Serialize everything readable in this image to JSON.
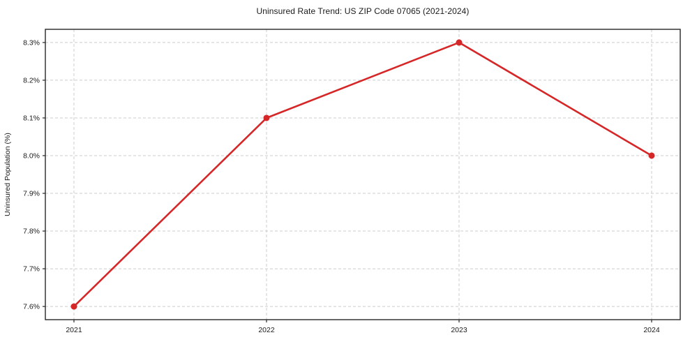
{
  "chart_data": {
    "type": "line",
    "title": "Uninsured Rate Trend: US ZIP Code 07065 (2021-2024)",
    "xlabel": "",
    "ylabel": "Uninsured Population (%)",
    "x": [
      2021,
      2022,
      2023,
      2024
    ],
    "xtick_labels": [
      "2021",
      "2022",
      "2023",
      "2024"
    ],
    "series": [
      {
        "name": "Uninsured Rate",
        "values": [
          7.6,
          8.1,
          8.3,
          8.0
        ],
        "color": "#d62728",
        "marker": "circle"
      }
    ],
    "yticks": [
      7.6,
      7.7,
      7.8,
      7.9,
      8.0,
      8.1,
      8.2,
      8.3
    ],
    "ytick_labels": [
      "7.6%",
      "7.7%",
      "7.8%",
      "7.9%",
      "8.0%",
      "8.1%",
      "8.2%",
      "8.3%"
    ],
    "ylim": [
      7.565,
      8.335
    ],
    "grid": true,
    "grid_style": "dashed",
    "grid_color": "#cccccc",
    "frame_color": "#262626",
    "background_color": "#ffffff",
    "legend": false
  }
}
